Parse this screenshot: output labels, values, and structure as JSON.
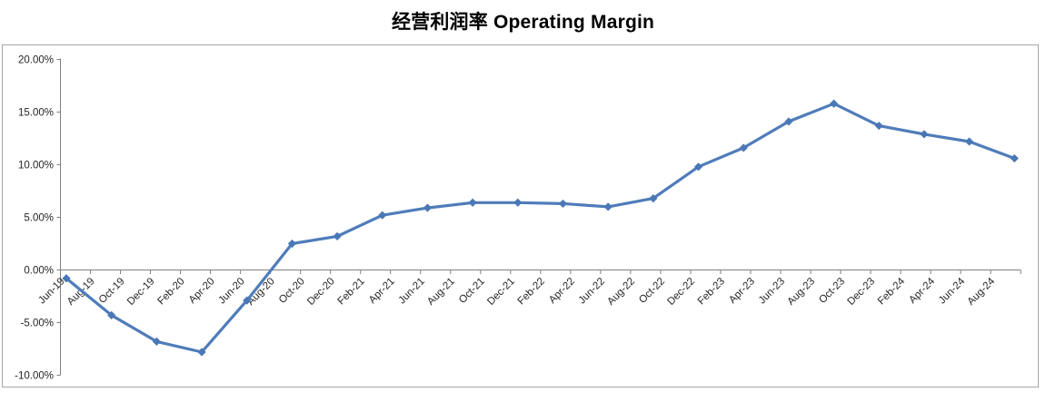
{
  "chart_data": {
    "type": "line",
    "title": "经营利润率 Operating Margin",
    "x": [
      "Jun-19",
      "Sep-19",
      "Dec-19",
      "Mar-20",
      "Jun-20",
      "Sep-20",
      "Dec-20",
      "Mar-21",
      "Jun-21",
      "Sep-21",
      "Dec-21",
      "Mar-22",
      "Jun-22",
      "Sep-22",
      "Dec-22",
      "Mar-23",
      "Jun-23",
      "Sep-23",
      "Dec-23",
      "Mar-24",
      "Jun-24",
      "Sep-24"
    ],
    "x_month_index": [
      0,
      3,
      6,
      9,
      12,
      15,
      18,
      21,
      24,
      27,
      30,
      33,
      36,
      39,
      42,
      45,
      48,
      51,
      54,
      57,
      60,
      63
    ],
    "values": [
      -0.8,
      -4.3,
      -6.8,
      -7.8,
      -2.9,
      2.5,
      3.2,
      5.2,
      5.9,
      6.4,
      6.4,
      6.3,
      6.0,
      6.8,
      9.8,
      11.6,
      14.1,
      15.8,
      13.7,
      12.9,
      12.2,
      10.6
    ],
    "value_unit": "percent",
    "x_axis": {
      "tick_labels": [
        "Jun-19",
        "Aug-19",
        "Oct-19",
        "Dec-19",
        "Feb-20",
        "Apr-20",
        "Jun-20",
        "Aug-20",
        "Oct-20",
        "Dec-20",
        "Feb-21",
        "Apr-21",
        "Jun-21",
        "Aug-21",
        "Oct-21",
        "Dec-21",
        "Feb-22",
        "Apr-22",
        "Jun-22",
        "Aug-22",
        "Oct-22",
        "Dec-22",
        "Feb-23",
        "Apr-23",
        "Jun-23",
        "Aug-23",
        "Oct-23",
        "Dec-23",
        "Feb-24",
        "Apr-24",
        "Jun-24",
        "Aug-24"
      ],
      "tick_month_step": 2,
      "end_tick_month": 64,
      "label_rotation_deg": -45
    },
    "y_axis": {
      "tick_labels": [
        "20.00%",
        "15.00%",
        "10.00%",
        "5.00%",
        "0.00%",
        "-5.00%",
        "-10.00%"
      ],
      "tick_values": [
        20,
        15,
        10,
        5,
        0,
        -5,
        -10
      ],
      "min": -10,
      "max": 20
    },
    "grid": false,
    "legend": "none",
    "marker": "diamond"
  },
  "colors": {
    "line": "#4f7cba",
    "marker": "#4a77b5",
    "axis": "#808080",
    "frame_border": "#a6a6a6",
    "label_text": "#262626",
    "title_text": "#000000",
    "background": "#ffffff"
  }
}
